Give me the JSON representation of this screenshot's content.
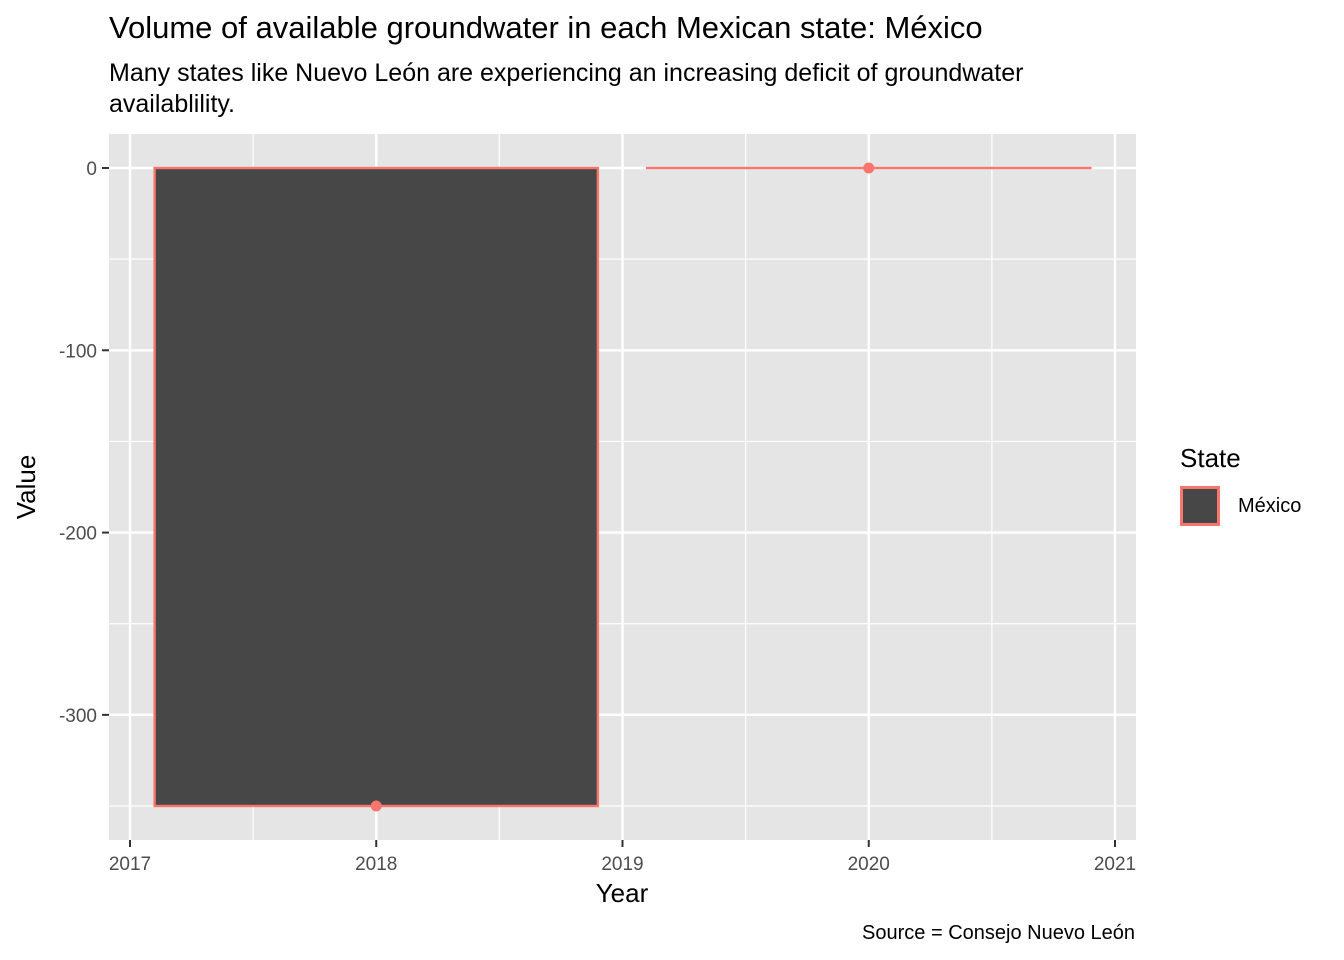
{
  "title": "Volume of available groundwater in each Mexican state: México",
  "subtitle": "Many states like Nuevo León are experiencing an increasing deficit of groundwater availablility.",
  "caption": "Source = Consejo Nuevo León",
  "legend": {
    "title": "State",
    "items": [
      "México"
    ]
  },
  "colors": {
    "fill": "#474747",
    "outline": "#f8766d",
    "panel": "#e5e5e5",
    "grid": "#ffffff"
  },
  "chart_data": {
    "type": "bar",
    "xlabel": "Year",
    "ylabel": "Value",
    "x_ticks": [
      "2017",
      "2018",
      "2019",
      "2020",
      "2021"
    ],
    "y_ticks": [
      "0",
      "-100",
      "-200",
      "-300"
    ],
    "xlim": [
      2017,
      2021
    ],
    "ylim": [
      -350,
      0
    ],
    "grid": true,
    "legend_position": "right",
    "series": [
      {
        "name": "México",
        "x": [
          2018,
          2020
        ],
        "values": [
          -350,
          0
        ]
      }
    ]
  }
}
